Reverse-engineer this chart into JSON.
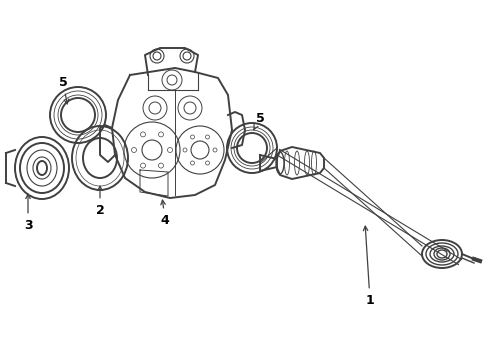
{
  "bg_color": "#ffffff",
  "line_color": "#404040",
  "label_color": "#000000",
  "figsize": [
    4.9,
    3.6
  ],
  "dpi": 100
}
